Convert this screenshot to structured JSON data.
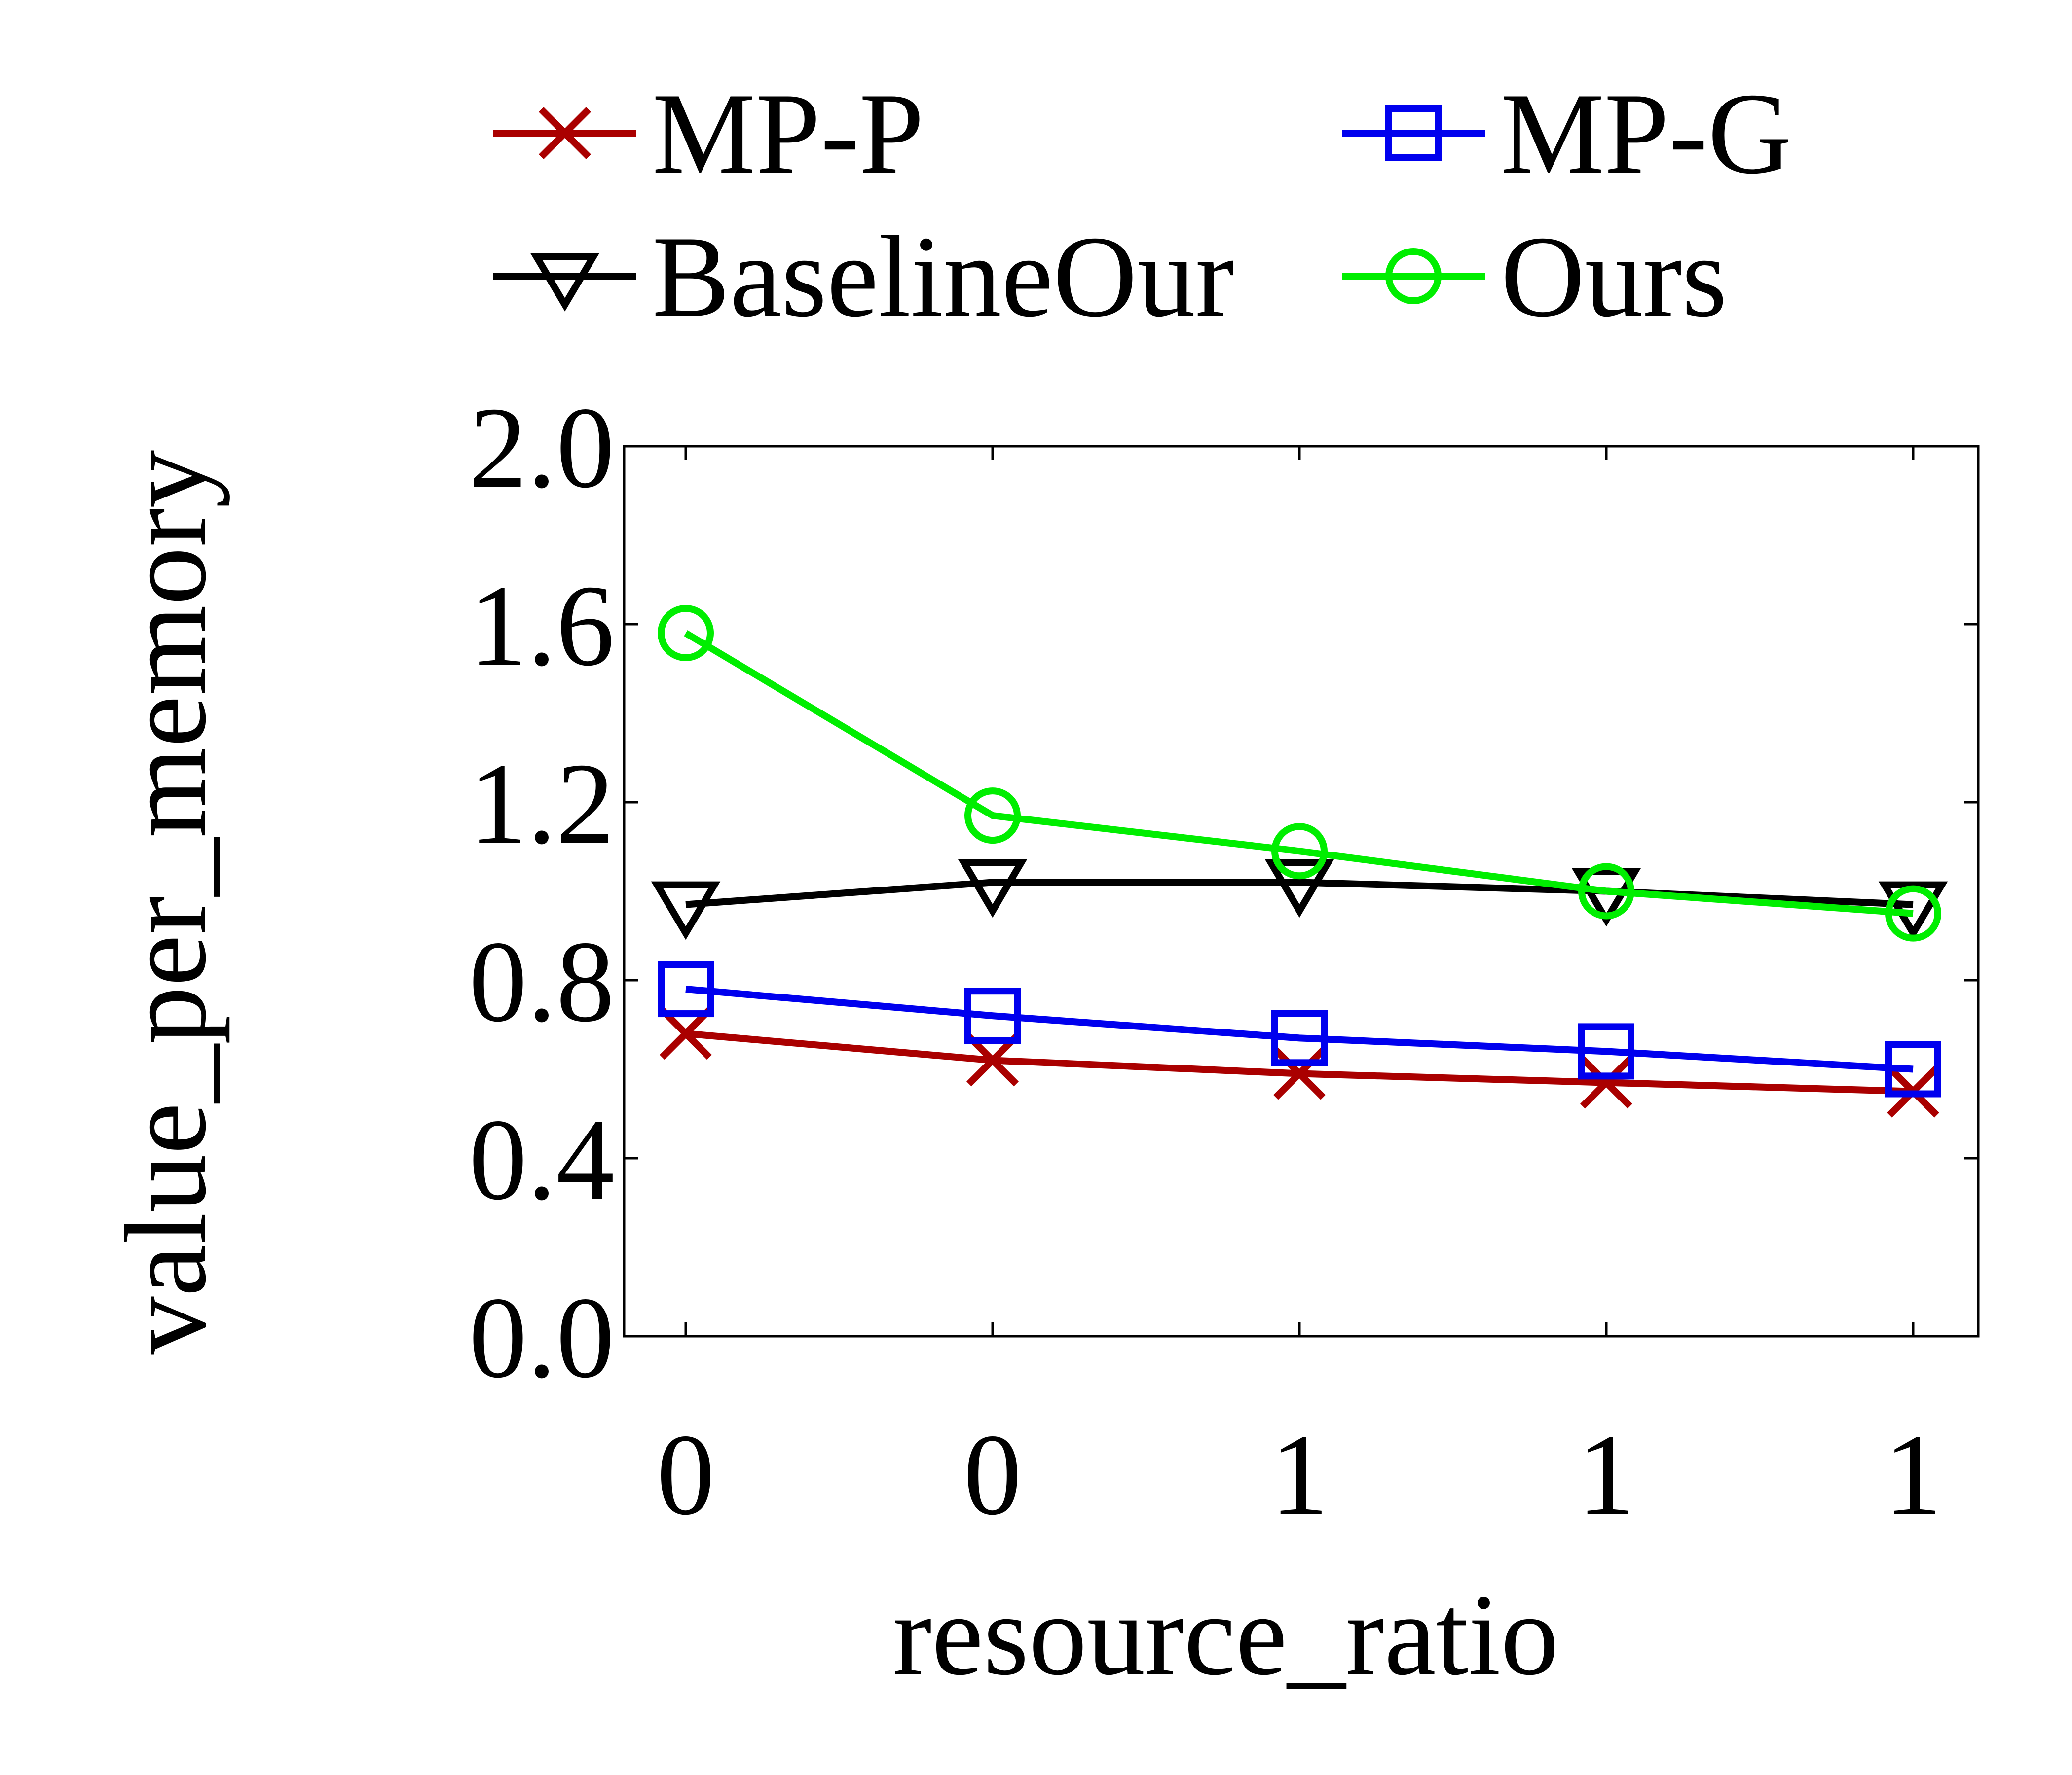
{
  "chart_data": {
    "type": "line",
    "title": "",
    "xlabel": "resource_ratio",
    "ylabel": "value_per_memory",
    "x_tick_labels": [
      "0",
      "0",
      "1",
      "1",
      "1"
    ],
    "ylim": [
      0.0,
      2.0
    ],
    "y_ticks": [
      0.0,
      0.4,
      0.8,
      1.2,
      1.6,
      2.0
    ],
    "y_tick_labels": [
      "0.0",
      "0.4",
      "0.8",
      "1.2",
      "1.6",
      "2.0"
    ],
    "grid": false,
    "legend_position": "top",
    "series": [
      {
        "name": "MP-P",
        "color": "#aa0000",
        "marker": "x",
        "values": [
          0.68,
          0.62,
          0.59,
          0.57,
          0.55
        ]
      },
      {
        "name": "MP-G",
        "color": "#0000ee",
        "marker": "square",
        "values": [
          0.78,
          0.72,
          0.67,
          0.64,
          0.6
        ]
      },
      {
        "name": "BaselineOur",
        "color": "#000000",
        "marker": "triangle-down",
        "values": [
          0.97,
          1.02,
          1.02,
          1.0,
          0.97
        ]
      },
      {
        "name": "Ours",
        "color": "#00ee00",
        "marker": "circle",
        "values": [
          1.58,
          1.17,
          1.09,
          1.0,
          0.95
        ]
      }
    ]
  }
}
